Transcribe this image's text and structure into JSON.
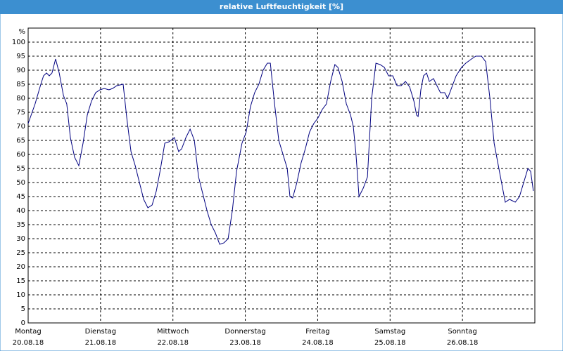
{
  "chart_data": {
    "type": "line",
    "title": "relative Luftfeuchtigkeit [%]",
    "y_label": "%",
    "xlim": [
      0,
      168
    ],
    "xticks": [
      {
        "value": 0,
        "label": [
          "Montag",
          "20.08.18"
        ]
      },
      {
        "value": 24,
        "label": [
          "Dienstag",
          "21.08.18"
        ]
      },
      {
        "value": 48,
        "label": [
          "Mittwoch",
          "22.08.18"
        ]
      },
      {
        "value": 72,
        "label": [
          "Donnerstag",
          "23.08.18"
        ]
      },
      {
        "value": 96,
        "label": [
          "Freitag",
          "24.08.18"
        ]
      },
      {
        "value": 120,
        "label": [
          "Samstag",
          "25.08.18"
        ]
      },
      {
        "value": 144,
        "label": [
          "Sonntag",
          "26.08.18"
        ]
      }
    ],
    "ylim": [
      0,
      105
    ],
    "yticks": [
      0,
      5,
      10,
      15,
      20,
      25,
      30,
      35,
      40,
      45,
      50,
      55,
      60,
      65,
      70,
      75,
      80,
      85,
      90,
      95,
      100
    ],
    "grid": true,
    "series": [
      {
        "name": "relative Luftfeuchtigkeit",
        "color": "#000080",
        "x": [
          0,
          2.3,
          4.2,
          5.1,
          6.1,
          7,
          7.9,
          9.1,
          10.3,
          11.7,
          12.8,
          14,
          15.4,
          16.8,
          18.2,
          19.6,
          21,
          22.4,
          23.8,
          25.2,
          26.8,
          28,
          29.4,
          31.5,
          32.7,
          34.1,
          35.5,
          36.9,
          38.3,
          39.7,
          41.1,
          42.5,
          43.9,
          45.3,
          46.7,
          48.5,
          49.9,
          50.9,
          52.3,
          53.7,
          55.1,
          56.5,
          57.9,
          59.3,
          60.7,
          62.1,
          63.5,
          64.9,
          66.3,
          67.7,
          69.1,
          70.9,
          72.3,
          73.7,
          75.1,
          76.5,
          77.9,
          79.3,
          80.3,
          81.7,
          83.1,
          84.5,
          85.9,
          86.8,
          87.7,
          89.1,
          90.5,
          91.9,
          93.3,
          94.7,
          96.1,
          97.5,
          98.9,
          100.3,
          101.7,
          102.7,
          104.1,
          105.5,
          106.9,
          107.8,
          108.7,
          109.7,
          111.1,
          112.5,
          113.9,
          115.3,
          116.7,
          118.1,
          119.5,
          120.9,
          122.3,
          123.7,
          125.1,
          126.5,
          127.9,
          128.8,
          129.3,
          130.2,
          131.1,
          132.1,
          133,
          134.4,
          135.3,
          136.7,
          138.1,
          139.1,
          140.5,
          141.9,
          143.7,
          145.1,
          147,
          148.4,
          150.3,
          151.7,
          153.1,
          154.5,
          155.9,
          157.3,
          158.2,
          159.6,
          161.5,
          162.9,
          164.3,
          165.7,
          166.6,
          167.5
        ],
        "values": [
          71,
          78,
          85,
          88,
          89,
          88,
          89,
          94,
          89,
          81,
          78,
          66,
          59,
          56,
          64,
          74,
          79,
          82,
          83,
          83.5,
          83,
          83.5,
          84.5,
          85,
          73,
          61,
          56,
          50,
          44,
          41,
          42,
          47,
          55,
          64,
          64.5,
          66,
          61,
          62,
          66,
          69,
          65,
          52,
          46,
          40,
          35,
          32,
          28,
          28.5,
          30,
          40,
          54,
          64,
          68,
          77,
          82,
          85,
          90,
          92.5,
          92.5,
          78,
          65,
          60,
          55,
          45,
          44.5,
          50,
          57,
          62,
          68,
          71,
          73,
          76,
          78,
          86,
          92,
          91,
          86,
          78,
          74,
          70,
          60,
          45,
          48,
          52,
          80,
          92.5,
          92,
          91,
          88,
          88,
          84.5,
          84.5,
          86,
          84,
          79,
          74,
          73.5,
          83,
          88,
          89,
          86,
          87,
          85,
          82,
          82,
          80,
          84,
          88,
          91,
          92.5,
          94,
          95,
          95,
          93,
          80,
          64,
          56,
          48,
          43,
          44,
          43,
          45,
          50,
          55,
          54,
          47
        ]
      }
    ]
  }
}
